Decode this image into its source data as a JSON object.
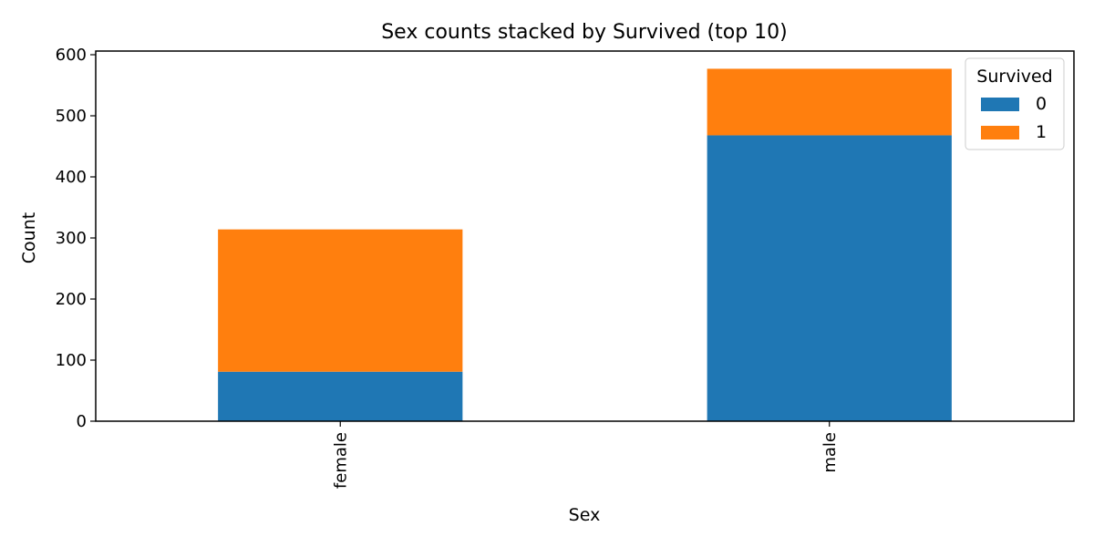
{
  "chart_data": {
    "type": "bar",
    "stacked": true,
    "title": "Sex counts stacked by Survived (top 10)",
    "xlabel": "Sex",
    "ylabel": "Count",
    "categories": [
      "female",
      "male"
    ],
    "series": [
      {
        "name": "0",
        "values": [
          81,
          468
        ],
        "color": "#1f77b4"
      },
      {
        "name": "1",
        "values": [
          233,
          109
        ],
        "color": "#ff7f0e"
      }
    ],
    "ylim": [
      0,
      606
    ],
    "yticks": [
      0,
      100,
      200,
      300,
      400,
      500,
      600
    ],
    "legend": {
      "title": "Survived",
      "position": "top-right"
    },
    "grid": false
  }
}
